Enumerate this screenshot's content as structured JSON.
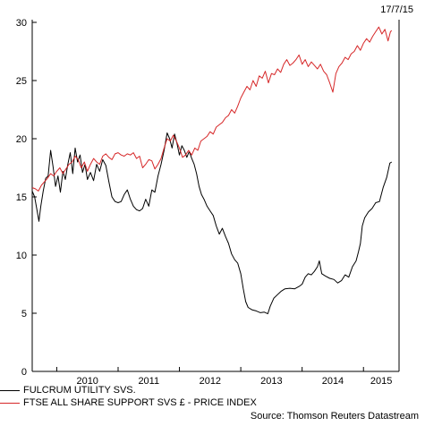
{
  "date_stamp": "17/7/15",
  "source": "Source: Thomson Reuters Datastream",
  "chart_data": {
    "type": "line",
    "title": "",
    "xlabel": "",
    "ylabel": "",
    "ylim": [
      0,
      30
    ],
    "xlim": [
      2009.6,
      2015.58
    ],
    "y_ticks": [
      0,
      5,
      10,
      15,
      20,
      25,
      30
    ],
    "x_tick_labels": [
      "2010",
      "2011",
      "2012",
      "2013",
      "2014",
      "2015"
    ],
    "grid": false,
    "legend_position": "bottom-left",
    "series": [
      {
        "name": "FULCRUM UTILITY SVS.",
        "color": "#000000",
        "points": [
          [
            2009.6,
            15.5
          ],
          [
            2009.64,
            15.0
          ],
          [
            2009.68,
            13.8
          ],
          [
            2009.71,
            12.9
          ],
          [
            2009.74,
            14.2
          ],
          [
            2009.78,
            15.5
          ],
          [
            2009.82,
            16.6
          ],
          [
            2009.86,
            16.8
          ],
          [
            2009.9,
            19.0
          ],
          [
            2009.94,
            17.6
          ],
          [
            2009.98,
            15.9
          ],
          [
            2010.02,
            16.8
          ],
          [
            2010.06,
            15.4
          ],
          [
            2010.1,
            17.2
          ],
          [
            2010.14,
            16.5
          ],
          [
            2010.18,
            17.8
          ],
          [
            2010.22,
            18.8
          ],
          [
            2010.26,
            17.0
          ],
          [
            2010.3,
            19.2
          ],
          [
            2010.34,
            18.0
          ],
          [
            2010.38,
            18.6
          ],
          [
            2010.42,
            17.1
          ],
          [
            2010.46,
            17.8
          ],
          [
            2010.5,
            16.5
          ],
          [
            2010.55,
            17.1
          ],
          [
            2010.6,
            16.4
          ],
          [
            2010.65,
            17.8
          ],
          [
            2010.7,
            17.2
          ],
          [
            2010.75,
            18.2
          ],
          [
            2010.8,
            17.7
          ],
          [
            2010.85,
            16.3
          ],
          [
            2010.9,
            15.0
          ],
          [
            2010.95,
            14.6
          ],
          [
            2011.0,
            14.5
          ],
          [
            2011.05,
            14.6
          ],
          [
            2011.1,
            15.2
          ],
          [
            2011.15,
            15.6
          ],
          [
            2011.2,
            14.8
          ],
          [
            2011.25,
            14.2
          ],
          [
            2011.3,
            13.9
          ],
          [
            2011.35,
            13.8
          ],
          [
            2011.4,
            14.0
          ],
          [
            2011.45,
            14.8
          ],
          [
            2011.5,
            14.2
          ],
          [
            2011.55,
            15.6
          ],
          [
            2011.6,
            15.4
          ],
          [
            2011.65,
            16.8
          ],
          [
            2011.7,
            17.8
          ],
          [
            2011.75,
            19.0
          ],
          [
            2011.8,
            20.5
          ],
          [
            2011.84,
            20.0
          ],
          [
            2011.88,
            19.2
          ],
          [
            2011.92,
            20.4
          ],
          [
            2011.96,
            19.6
          ],
          [
            2012.0,
            18.6
          ],
          [
            2012.04,
            19.4
          ],
          [
            2012.08,
            19.0
          ],
          [
            2012.12,
            18.4
          ],
          [
            2012.16,
            18.9
          ],
          [
            2012.2,
            18.3
          ],
          [
            2012.24,
            17.8
          ],
          [
            2012.28,
            17.0
          ],
          [
            2012.32,
            15.9
          ],
          [
            2012.36,
            15.2
          ],
          [
            2012.4,
            14.8
          ],
          [
            2012.45,
            14.2
          ],
          [
            2012.5,
            13.8
          ],
          [
            2012.55,
            13.4
          ],
          [
            2012.6,
            12.5
          ],
          [
            2012.65,
            11.8
          ],
          [
            2012.7,
            12.3
          ],
          [
            2012.75,
            11.6
          ],
          [
            2012.8,
            11.0
          ],
          [
            2012.85,
            10.1
          ],
          [
            2012.9,
            9.6
          ],
          [
            2012.95,
            9.3
          ],
          [
            2013.0,
            8.4
          ],
          [
            2013.04,
            7.1
          ],
          [
            2013.08,
            6.0
          ],
          [
            2013.12,
            5.5
          ],
          [
            2013.18,
            5.3
          ],
          [
            2013.25,
            5.2
          ],
          [
            2013.32,
            5.05
          ],
          [
            2013.38,
            5.1
          ],
          [
            2013.44,
            4.95
          ],
          [
            2013.48,
            5.6
          ],
          [
            2013.54,
            6.3
          ],
          [
            2013.6,
            6.6
          ],
          [
            2013.66,
            6.9
          ],
          [
            2013.72,
            7.1
          ],
          [
            2013.8,
            7.15
          ],
          [
            2013.88,
            7.1
          ],
          [
            2013.95,
            7.3
          ],
          [
            2014.0,
            7.5
          ],
          [
            2014.05,
            8.1
          ],
          [
            2014.1,
            8.4
          ],
          [
            2014.15,
            8.3
          ],
          [
            2014.2,
            8.6
          ],
          [
            2014.25,
            9.0
          ],
          [
            2014.28,
            9.5
          ],
          [
            2014.32,
            8.4
          ],
          [
            2014.38,
            8.2
          ],
          [
            2014.45,
            8.0
          ],
          [
            2014.52,
            7.9
          ],
          [
            2014.58,
            7.6
          ],
          [
            2014.64,
            7.8
          ],
          [
            2014.7,
            8.3
          ],
          [
            2014.76,
            8.1
          ],
          [
            2014.82,
            9.0
          ],
          [
            2014.88,
            9.5
          ],
          [
            2014.92,
            10.3
          ],
          [
            2014.95,
            11.0
          ],
          [
            2014.98,
            12.5
          ],
          [
            2015.02,
            13.2
          ],
          [
            2015.08,
            13.7
          ],
          [
            2015.14,
            14.0
          ],
          [
            2015.2,
            14.5
          ],
          [
            2015.26,
            14.6
          ],
          [
            2015.32,
            15.8
          ],
          [
            2015.38,
            16.7
          ],
          [
            2015.43,
            17.9
          ],
          [
            2015.46,
            18.0
          ]
        ]
      },
      {
        "name": "FTSE ALL SHARE SUPPORT SVS £ - PRICE INDEX",
        "color": "#d62728",
        "points": [
          [
            2009.6,
            15.8
          ],
          [
            2009.65,
            15.7
          ],
          [
            2009.7,
            15.5
          ],
          [
            2009.75,
            16.0
          ],
          [
            2009.8,
            16.3
          ],
          [
            2009.85,
            16.6
          ],
          [
            2009.9,
            17.0
          ],
          [
            2009.95,
            16.8
          ],
          [
            2010.0,
            17.2
          ],
          [
            2010.05,
            17.5
          ],
          [
            2010.1,
            17.0
          ],
          [
            2010.15,
            17.4
          ],
          [
            2010.2,
            17.8
          ],
          [
            2010.25,
            18.0
          ],
          [
            2010.3,
            18.5
          ],
          [
            2010.35,
            18.2
          ],
          [
            2010.4,
            17.5
          ],
          [
            2010.45,
            18.0
          ],
          [
            2010.5,
            17.2
          ],
          [
            2010.55,
            17.8
          ],
          [
            2010.6,
            18.3
          ],
          [
            2010.65,
            18.0
          ],
          [
            2010.7,
            17.8
          ],
          [
            2010.75,
            18.5
          ],
          [
            2010.8,
            18.7
          ],
          [
            2010.85,
            18.4
          ],
          [
            2010.9,
            18.2
          ],
          [
            2010.95,
            18.7
          ],
          [
            2011.0,
            18.8
          ],
          [
            2011.05,
            18.6
          ],
          [
            2011.1,
            18.5
          ],
          [
            2011.15,
            18.7
          ],
          [
            2011.2,
            18.6
          ],
          [
            2011.25,
            18.8
          ],
          [
            2011.3,
            18.3
          ],
          [
            2011.35,
            18.5
          ],
          [
            2011.4,
            17.5
          ],
          [
            2011.45,
            17.8
          ],
          [
            2011.5,
            18.2
          ],
          [
            2011.55,
            18.1
          ],
          [
            2011.6,
            17.4
          ],
          [
            2011.65,
            17.8
          ],
          [
            2011.7,
            18.3
          ],
          [
            2011.75,
            19.2
          ],
          [
            2011.8,
            20.0
          ],
          [
            2011.85,
            19.8
          ],
          [
            2011.9,
            20.3
          ],
          [
            2011.95,
            19.8
          ],
          [
            2012.0,
            19.2
          ],
          [
            2012.05,
            18.4
          ],
          [
            2012.1,
            18.6
          ],
          [
            2012.15,
            19.0
          ],
          [
            2012.2,
            18.6
          ],
          [
            2012.25,
            19.2
          ],
          [
            2012.3,
            19.0
          ],
          [
            2012.35,
            19.8
          ],
          [
            2012.4,
            20.0
          ],
          [
            2012.45,
            20.2
          ],
          [
            2012.5,
            20.6
          ],
          [
            2012.55,
            20.4
          ],
          [
            2012.6,
            21.0
          ],
          [
            2012.65,
            21.2
          ],
          [
            2012.7,
            21.4
          ],
          [
            2012.75,
            21.8
          ],
          [
            2012.8,
            22.0
          ],
          [
            2012.85,
            22.5
          ],
          [
            2012.9,
            22.2
          ],
          [
            2012.95,
            22.8
          ],
          [
            2013.0,
            23.5
          ],
          [
            2013.05,
            24.0
          ],
          [
            2013.1,
            24.5
          ],
          [
            2013.15,
            24.2
          ],
          [
            2013.2,
            25.0
          ],
          [
            2013.25,
            24.5
          ],
          [
            2013.3,
            25.4
          ],
          [
            2013.35,
            25.2
          ],
          [
            2013.4,
            25.8
          ],
          [
            2013.45,
            24.8
          ],
          [
            2013.5,
            25.6
          ],
          [
            2013.55,
            25.5
          ],
          [
            2013.6,
            26.0
          ],
          [
            2013.65,
            25.7
          ],
          [
            2013.7,
            26.4
          ],
          [
            2013.75,
            26.8
          ],
          [
            2013.8,
            26.3
          ],
          [
            2013.85,
            26.5
          ],
          [
            2013.9,
            26.8
          ],
          [
            2013.95,
            27.2
          ],
          [
            2014.0,
            26.4
          ],
          [
            2014.05,
            26.8
          ],
          [
            2014.1,
            26.2
          ],
          [
            2014.15,
            26.6
          ],
          [
            2014.2,
            26.3
          ],
          [
            2014.25,
            26.0
          ],
          [
            2014.3,
            26.4
          ],
          [
            2014.35,
            25.8
          ],
          [
            2014.4,
            25.5
          ],
          [
            2014.45,
            24.8
          ],
          [
            2014.5,
            24.0
          ],
          [
            2014.55,
            25.6
          ],
          [
            2014.6,
            26.2
          ],
          [
            2014.65,
            26.5
          ],
          [
            2014.7,
            27.0
          ],
          [
            2014.75,
            26.8
          ],
          [
            2014.8,
            27.3
          ],
          [
            2014.85,
            27.5
          ],
          [
            2014.9,
            28.0
          ],
          [
            2014.95,
            27.6
          ],
          [
            2015.0,
            28.2
          ],
          [
            2015.05,
            28.6
          ],
          [
            2015.1,
            28.3
          ],
          [
            2015.15,
            28.8
          ],
          [
            2015.2,
            29.2
          ],
          [
            2015.25,
            29.6
          ],
          [
            2015.3,
            29.0
          ],
          [
            2015.35,
            29.4
          ],
          [
            2015.4,
            28.4
          ],
          [
            2015.44,
            29.2
          ],
          [
            2015.46,
            29.3
          ]
        ]
      }
    ]
  }
}
